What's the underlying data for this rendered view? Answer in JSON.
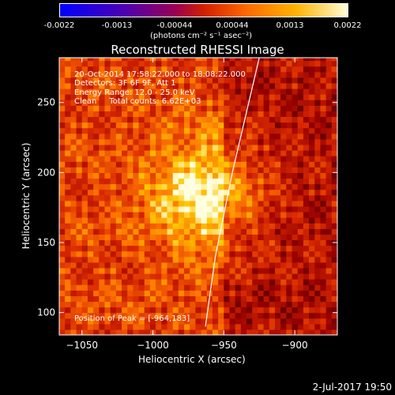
{
  "colorbar": {
    "ticks": [
      "-0.0022",
      "-0.0013",
      "-0.00044",
      "0.00044",
      "0.0013",
      "0.0022"
    ],
    "unit_label": "(photons cm⁻² s⁻¹ asec⁻²)"
  },
  "chart_data": {
    "type": "heatmap",
    "title": "Reconstructed RHESSI Image",
    "xlabel": "Heliocentric X (arcsec)",
    "ylabel": "Heliocentric Y (arcsec)",
    "xlim": [
      -1066,
      -870
    ],
    "ylim": [
      84,
      282
    ],
    "x_ticks": [
      -1050,
      -1000,
      -950,
      -900
    ],
    "y_ticks": [
      100,
      150,
      200,
      250
    ],
    "colorbar_range": [
      -0.0022,
      0.0022
    ],
    "peak": {
      "x": -964,
      "y": 183
    },
    "limb_line": [
      [
        -963,
        90
      ],
      [
        -956,
        140
      ],
      [
        -944,
        200
      ],
      [
        -925,
        282
      ]
    ]
  },
  "annotations": {
    "time": "20-Oct-2014 17:58:22.000 to 18:08:22.000",
    "detectors": "Detectors: 3F 6F 9F, Att 1",
    "energy": "Energy Range: 12.0 - 25.0 keV",
    "clean": "Clean     Total counts: 6.62E+03",
    "peak": "Position of Peak = [-964,183]"
  },
  "footer": {
    "date": "2-Jul-2017 19:50"
  }
}
